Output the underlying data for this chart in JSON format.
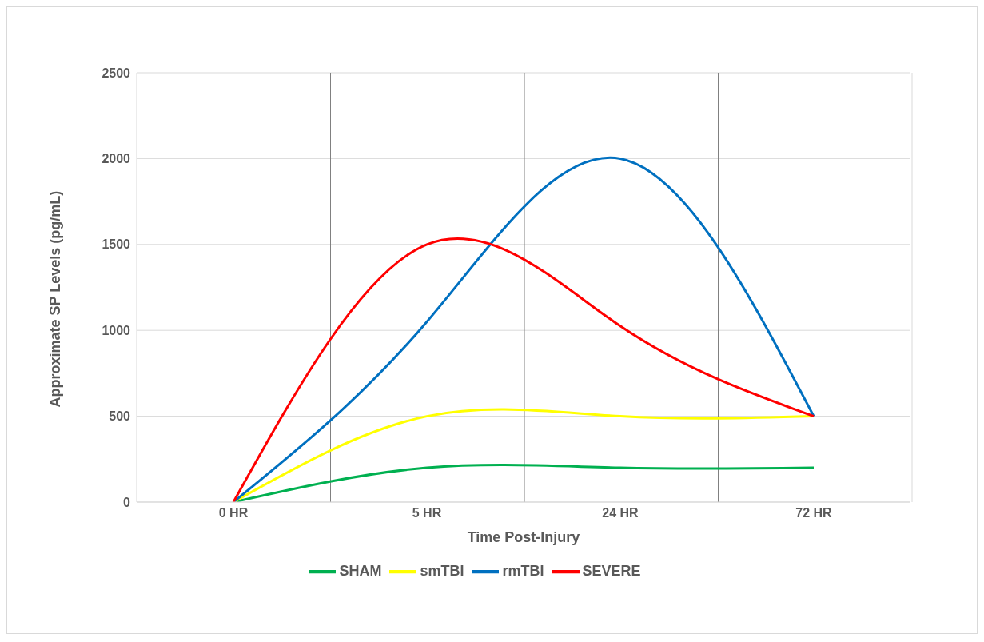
{
  "chart_data": {
    "type": "line",
    "xlabel": "Time Post-Injury",
    "ylabel": "Approximate SP Levels (pg/mL)",
    "categories": [
      "0 HR",
      "5 HR",
      "24 HR",
      "72 HR"
    ],
    "series": [
      {
        "name": "SHAM",
        "color": "#00b050",
        "values": [
          0,
          200,
          200,
          200
        ]
      },
      {
        "name": "smTBI",
        "color": "#ffff00",
        "values": [
          0,
          500,
          500,
          500
        ]
      },
      {
        "name": "rmTBI",
        "color": "#0070c0",
        "values": [
          0,
          1050,
          2000,
          500
        ]
      },
      {
        "name": "SEVERE",
        "color": "#ff0000",
        "values": [
          0,
          1500,
          1025,
          500
        ]
      }
    ],
    "ylim": [
      0,
      2500
    ],
    "yticks": [
      0,
      500,
      1000,
      1500,
      2000,
      2500
    ],
    "grid": true,
    "legend": "bottom",
    "marker": "none",
    "line_style": "solid"
  }
}
